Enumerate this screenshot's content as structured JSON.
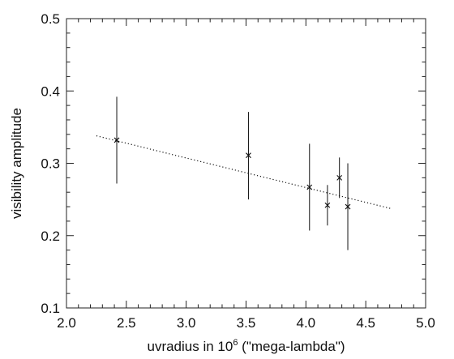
{
  "chart_data": {
    "type": "scatter",
    "title": "",
    "xlabel_prefix": "uvradius in 10",
    "xlabel_sup": "6",
    "xlabel_suffix": " (\"mega-lambda\")",
    "ylabel": "visibility amplitude",
    "xlim": [
      2.0,
      5.0
    ],
    "ylim": [
      0.1,
      0.5
    ],
    "x_ticks": [
      "2.0",
      "2.5",
      "3.0",
      "3.5",
      "4.0",
      "4.5",
      "5.0"
    ],
    "y_ticks": [
      "0.1",
      "0.2",
      "0.3",
      "0.4",
      "0.5"
    ],
    "grid": false,
    "legend": "none",
    "points": [
      {
        "x": 2.42,
        "y": 0.332,
        "ylo": 0.272,
        "yhi": 0.392
      },
      {
        "x": 3.52,
        "y": 0.311,
        "ylo": 0.25,
        "yhi": 0.371
      },
      {
        "x": 4.03,
        "y": 0.267,
        "ylo": 0.207,
        "yhi": 0.327
      },
      {
        "x": 4.18,
        "y": 0.242,
        "ylo": 0.214,
        "yhi": 0.27
      },
      {
        "x": 4.28,
        "y": 0.28,
        "ylo": 0.252,
        "yhi": 0.308
      },
      {
        "x": 4.35,
        "y": 0.24,
        "ylo": 0.18,
        "yhi": 0.3
      }
    ],
    "fit_line": {
      "x": [
        2.25,
        4.72
      ],
      "y": [
        0.338,
        0.237
      ],
      "style": "dotted"
    }
  }
}
